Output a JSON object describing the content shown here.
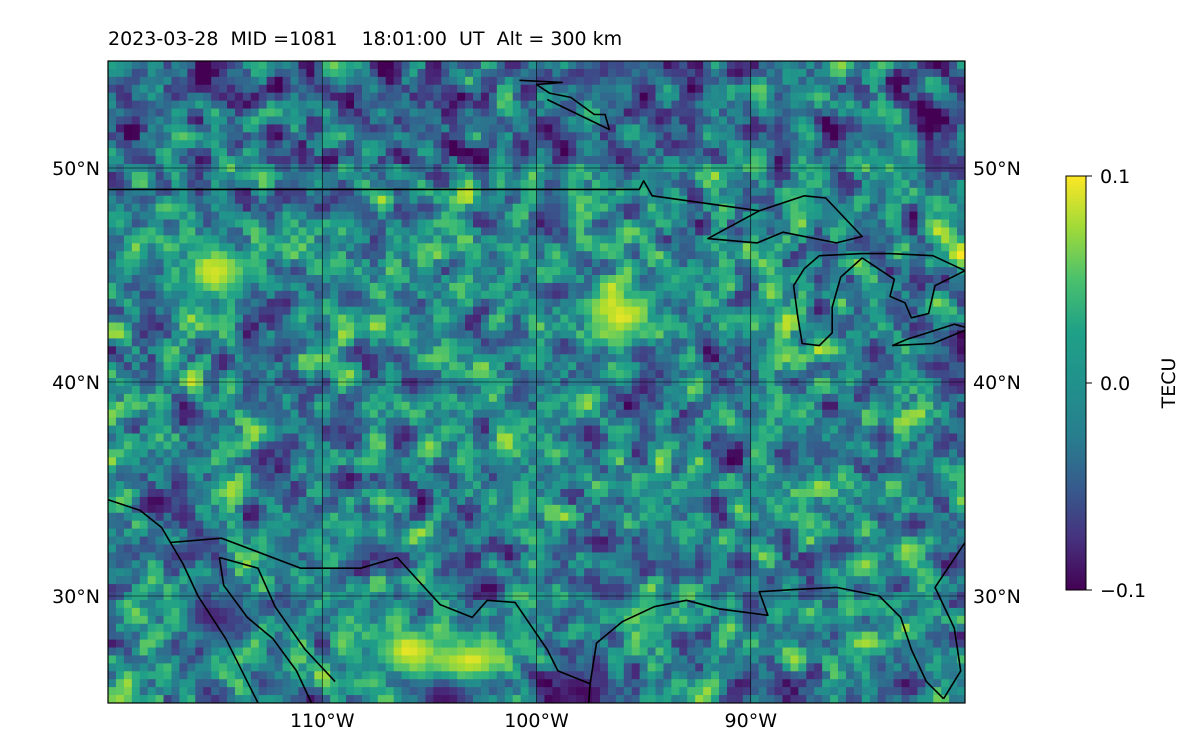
{
  "title": "2023-03-28  MID =1081    18:01:00  UT  Alt = 300 km",
  "chart_data": {
    "type": "heatmap",
    "title": "2023-03-28  MID =1081    18:01:00  UT  Alt = 300 km",
    "xlabel": "",
    "ylabel": "",
    "xlim": [
      -120,
      -80
    ],
    "ylim": [
      25,
      55
    ],
    "x_ticks": [
      -110,
      -100,
      -90
    ],
    "x_tick_labels": [
      "110°W",
      "100°W",
      "90°W"
    ],
    "y_ticks": [
      30,
      40,
      50
    ],
    "y_tick_labels_left": [
      "30°N",
      "40°N",
      "50°N"
    ],
    "y_tick_labels_right": [
      "30°N",
      "40°N",
      "50°N"
    ],
    "grid": true,
    "colormap": "viridis",
    "colorbar": {
      "label": "TECU",
      "range": [
        -0.1,
        0.1
      ],
      "ticks": [
        0.1,
        0.0,
        -0.1
      ],
      "tick_labels": [
        "0.1",
        "0.0",
        "−0.1"
      ]
    },
    "notable_features": [
      {
        "description": "strong negative patch",
        "lon": -104,
        "lat": 25.5,
        "value": -0.1
      },
      {
        "description": "strong negative patch",
        "lon": -98,
        "lat": 25.5,
        "value": -0.1
      },
      {
        "description": "strong positive patch",
        "lon": -103,
        "lat": 27.0,
        "value": 0.1
      },
      {
        "description": "strong positive patch",
        "lon": -106,
        "lat": 27.5,
        "value": 0.1
      },
      {
        "description": "strong negative patch",
        "lon": -115,
        "lat": 29.0,
        "value": -0.08
      },
      {
        "description": "strong positive patch",
        "lon": -96,
        "lat": 43.0,
        "value": 0.1
      },
      {
        "description": "strong positive patch",
        "lon": -115,
        "lat": 45.0,
        "value": 0.09
      }
    ]
  },
  "colors": {
    "viridis_low": "#440154",
    "viridis_mid": "#21918c",
    "viridis_high": "#fde725",
    "coastline": "#000000",
    "gridline": "#000000"
  }
}
